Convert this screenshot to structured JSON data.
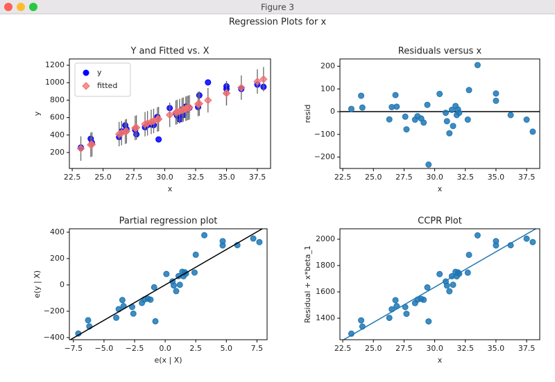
{
  "window_title": "Figure 3",
  "suptitle": "Regression Plots for x",
  "chart_data": [
    {
      "type": "scatter",
      "title": "Y and Fitted vs. X",
      "xlabel": "x",
      "ylabel": "y",
      "xlim": [
        22.27,
        38.57
      ],
      "ylim": [
        17,
        1272
      ],
      "xticks": [
        22.5,
        {
          "value": 25,
          "label": "25.0"
        },
        27.5,
        {
          "value": 30,
          "label": "30.0"
        },
        32.5,
        {
          "value": 35,
          "label": "35.0"
        },
        37.5
      ],
      "yticks": [
        200,
        400,
        600,
        800,
        1000,
        1200
      ],
      "legend": "upper left",
      "x": [
        23.2,
        24.0,
        24.1,
        26.3,
        26.5,
        26.8,
        26.9,
        27.6,
        27.7,
        28.4,
        28.6,
        28.9,
        29.1,
        29.4,
        29.5,
        30.4,
        30.9,
        31.0,
        31.2,
        31.4,
        31.5,
        31.7,
        31.8,
        31.9,
        32.0,
        32.7,
        32.8,
        33.5,
        35.0,
        35.0,
        36.2,
        37.5,
        38.0
      ],
      "series": [
        {
          "name": "y",
          "color": "#0000ff",
          "marker": "o",
          "values": [
            257,
            358,
            311,
            377,
            442,
            511,
            466,
            459,
            408,
            489,
            515,
            521,
            514,
            608,
            350,
            709,
            653,
            622,
            579,
            693,
            628,
            726,
            692,
            722,
            712,
            720,
            855,
            1003,
            959,
            927,
            928,
            978,
            952
          ]
        },
        {
          "name": "fitted",
          "color": "#f07070",
          "marker": "D",
          "values": [
            245,
            288,
            293,
            411,
            422,
            438,
            444,
            481,
            486,
            524,
            535,
            551,
            562,
            578,
            583,
            631,
            658,
            664,
            674,
            685,
            691,
            701,
            707,
            712,
            717,
            755,
            760,
            798,
            879,
            879,
            943,
            1013,
            1040
          ],
          "yerr": [
            140,
            140,
            140,
            140,
            140,
            140,
            140,
            140,
            140,
            140,
            140,
            140,
            140,
            140,
            140,
            140,
            140,
            140,
            140,
            140,
            140,
            140,
            140,
            140,
            140,
            140,
            140,
            140,
            140,
            140,
            140,
            140,
            140
          ]
        }
      ]
    },
    {
      "type": "scatter",
      "title": "Residuals versus x",
      "xlabel": "x",
      "ylabel": "resid",
      "xlim": [
        22.27,
        38.57
      ],
      "ylim": [
        -250,
        232
      ],
      "xticks": [
        22.5,
        {
          "value": 25,
          "label": "25.0"
        },
        27.5,
        {
          "value": 30,
          "label": "30.0"
        },
        32.5,
        {
          "value": 35,
          "label": "35.0"
        },
        37.5
      ],
      "yticks": [
        {
          "value": -200,
          "label": "−200"
        },
        {
          "value": -100,
          "label": "−100"
        },
        0,
        100,
        200
      ],
      "reference_line": 0,
      "x": [
        23.2,
        24.0,
        24.1,
        26.3,
        26.5,
        26.8,
        26.9,
        27.6,
        27.7,
        28.4,
        28.6,
        28.9,
        29.1,
        29.4,
        29.5,
        30.4,
        30.9,
        31.0,
        31.2,
        31.4,
        31.5,
        31.7,
        31.8,
        31.9,
        32.0,
        32.7,
        32.8,
        33.5,
        35.0,
        35.0,
        36.2,
        37.5,
        38.0
      ],
      "series": [
        {
          "color": "#1f77b4",
          "marker": "o",
          "values": [
            12,
            70,
            18,
            -34,
            20,
            73,
            22,
            -22,
            -78,
            -35,
            -20,
            -30,
            -48,
            30,
            -233,
            78,
            -5,
            -42,
            -95,
            8,
            -63,
            25,
            -15,
            10,
            -5,
            -35,
            95,
            205,
            80,
            48,
            -15,
            -35,
            -88
          ]
        }
      ]
    },
    {
      "type": "scatter",
      "title": "Partial regression plot",
      "xlabel": "e(x | X)",
      "ylabel": "e(y | X)",
      "xlim": [
        -7.83,
        8.33
      ],
      "ylim": [
        -416,
        426
      ],
      "xticks": [
        {
          "value": -7.5,
          "label": "−7.5"
        },
        {
          "value": -5,
          "label": "−5.0"
        },
        {
          "value": -2.5,
          "label": "−2.5"
        },
        {
          "value": 0,
          "label": "0.0"
        },
        2.5,
        {
          "value": 5,
          "label": "5.0"
        },
        7.5
      ],
      "yticks": [
        {
          "value": -400,
          "label": "−400"
        },
        {
          "value": -200,
          "label": "−200"
        },
        0,
        200,
        400
      ],
      "fit_line": {
        "slope": 53.7,
        "intercept": 0,
        "color": "#000000"
      },
      "x": [
        -7.1,
        -6.3,
        -6.2,
        -4.0,
        -3.8,
        -3.5,
        -3.4,
        -2.7,
        -2.6,
        -1.9,
        -1.7,
        -1.4,
        -1.2,
        -0.9,
        -0.8,
        0.1,
        0.6,
        0.7,
        0.9,
        1.1,
        1.2,
        1.4,
        1.5,
        1.6,
        1.7,
        2.4,
        2.5,
        3.2,
        4.7,
        4.7,
        5.9,
        7.2,
        7.7
      ],
      "series": [
        {
          "color": "#1f77b4",
          "marker": "o",
          "values": [
            -369,
            -268,
            -315,
            -249,
            -184,
            -115,
            -161,
            -167,
            -218,
            -137,
            -111,
            -105,
            -112,
            -18,
            -276,
            83,
            27,
            -4,
            -47,
            67,
            1,
            100,
            66,
            96,
            86,
            94,
            229,
            377,
            332,
            300,
            302,
            352,
            325
          ]
        }
      ]
    },
    {
      "type": "scatter",
      "title": "CCPR Plot",
      "xlabel": "x",
      "ylabel": "Residual + x*beta_1",
      "xlim": [
        22.27,
        38.57
      ],
      "ylim": [
        1237,
        2079
      ],
      "xticks": [
        22.5,
        {
          "value": 25,
          "label": "25.0"
        },
        27.5,
        {
          "value": 30,
          "label": "30.0"
        },
        32.5,
        {
          "value": 35,
          "label": "35.0"
        },
        37.5
      ],
      "yticks": [
        1400,
        1600,
        1800,
        2000
      ],
      "fit_line": {
        "slope": 53.7,
        "intercept": 25,
        "color": "#1f77b4"
      },
      "x": [
        23.2,
        24.0,
        24.1,
        26.3,
        26.5,
        26.8,
        26.9,
        27.6,
        27.7,
        28.4,
        28.6,
        28.9,
        29.1,
        29.4,
        29.5,
        30.4,
        30.9,
        31.0,
        31.2,
        31.4,
        31.5,
        31.7,
        31.8,
        31.9,
        32.0,
        32.7,
        32.8,
        33.5,
        35.0,
        35.0,
        36.2,
        37.5,
        38.0
      ],
      "series": [
        {
          "color": "#1f77b4",
          "marker": "o",
          "values": [
            1283,
            1384,
            1337,
            1403,
            1468,
            1537,
            1492,
            1485,
            1434,
            1515,
            1541,
            1547,
            1540,
            1634,
            1376,
            1735,
            1679,
            1648,
            1605,
            1719,
            1654,
            1752,
            1718,
            1748,
            1738,
            1746,
            1881,
            2029,
            1985,
            1953,
            1954,
            2004,
            1978
          ]
        }
      ]
    }
  ]
}
